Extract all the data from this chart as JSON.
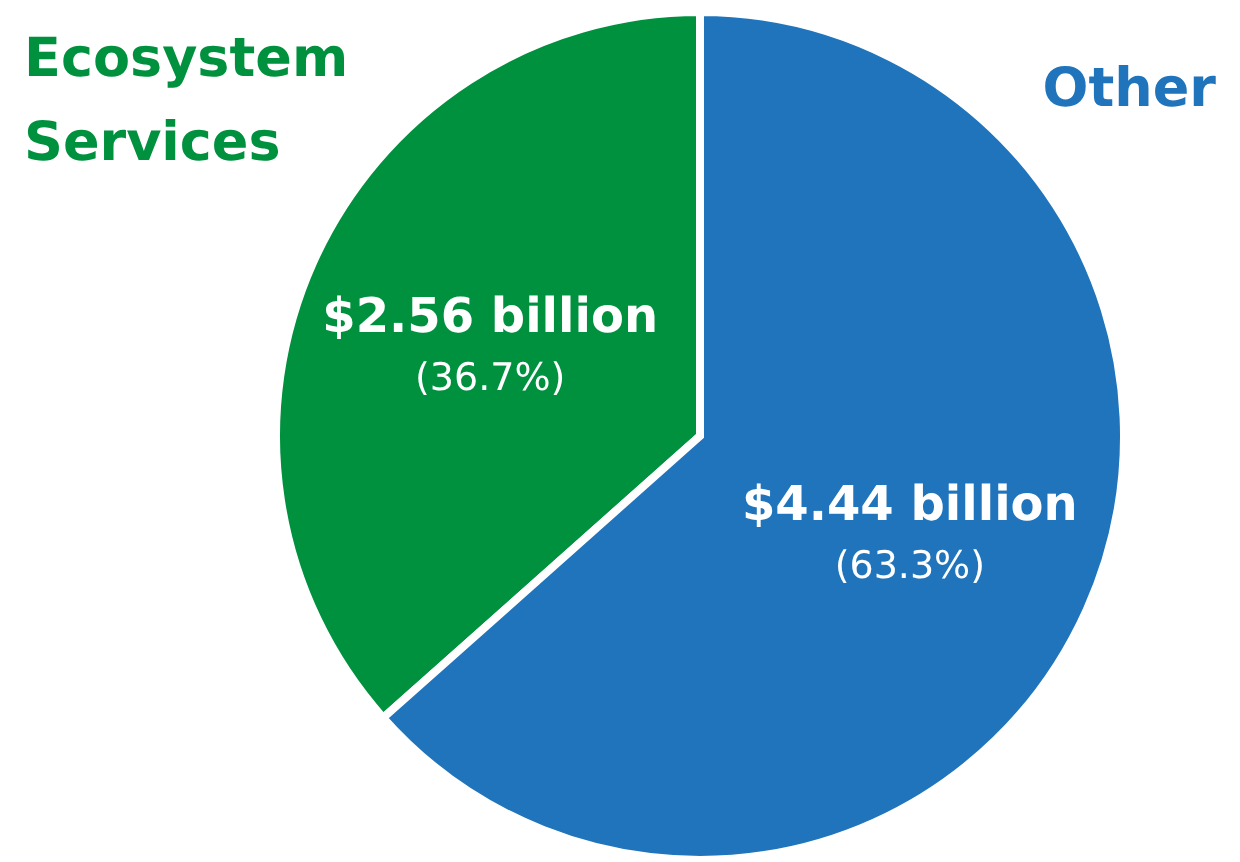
{
  "chart_data": {
    "type": "pie",
    "categories": [
      "Ecosystem Services",
      "Other"
    ],
    "values": [
      2.56,
      4.44
    ],
    "colors": [
      "#00913f",
      "#1f74bb"
    ],
    "value_labels": [
      "$2.56 billion",
      "$4.44 billion"
    ],
    "annotations": [
      "(36.7%)",
      "(63.3%)"
    ]
  }
}
